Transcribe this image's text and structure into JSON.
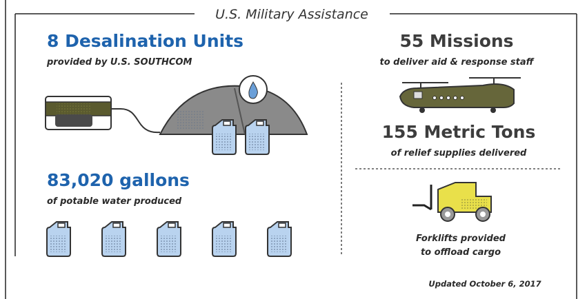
{
  "header": {
    "title": "U.S. Military Assistance"
  },
  "left": {
    "units": {
      "headline": "8 Desalination Units",
      "caption": "provided by U.S. SOUTHCOM"
    },
    "water": {
      "headline": "83,020 gallons",
      "caption": "of potable water produced"
    }
  },
  "right": {
    "missions": {
      "headline": "55 Missions",
      "caption": "to deliver aid & response staff"
    },
    "supplies": {
      "headline": "155 Metric Tons",
      "caption": "of relief supplies delivered"
    },
    "forklifts": {
      "line1": "Forklifts provided",
      "line2": "to offload cargo"
    }
  },
  "footer": {
    "updated": "Updated October 6, 2017"
  }
}
